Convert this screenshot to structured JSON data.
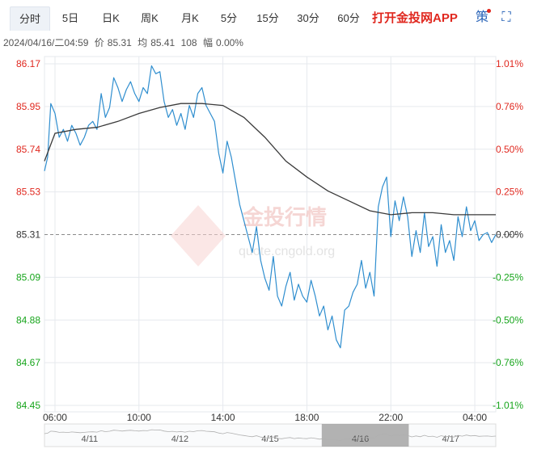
{
  "tabs": [
    {
      "label": "分时",
      "active": true
    },
    {
      "label": "5日"
    },
    {
      "label": "日K"
    },
    {
      "label": "周K"
    },
    {
      "label": "月K"
    },
    {
      "label": "5分"
    },
    {
      "label": "15分"
    },
    {
      "label": "30分"
    },
    {
      "label": "60分"
    }
  ],
  "promo": "打开金投网APP",
  "tool_icons": [
    "strategy-icon",
    "fullscreen-icon"
  ],
  "strategy_glyph": "策",
  "fullscreen_glyph": "⛶",
  "info": {
    "datetime": "2024/04/16/二04:59",
    "price_label": "价",
    "price": "85.31",
    "avg_label": "均",
    "avg": "85.41",
    "volume": "108",
    "change_label": "幅",
    "change": "0.00%"
  },
  "watermark": {
    "brand": "金投行情",
    "url": "quote.cngold.org"
  },
  "colors": {
    "price_line": "#2f8ecf",
    "avg_line": "#3a3a3a",
    "up": "#e0281f",
    "down": "#17a51c",
    "neutral": "#333333",
    "grid": "#e6e9ee",
    "ref_line": "#8a8a8a"
  },
  "chart_data": {
    "type": "line",
    "title": "",
    "xlabel": "",
    "ylabel": "",
    "reference_price": 85.31,
    "ylim": [
      84.45,
      86.17
    ],
    "y_ticks": [
      "86.17",
      "85.95",
      "85.74",
      "85.53",
      "85.31",
      "85.09",
      "84.88",
      "84.67",
      "84.45"
    ],
    "pct_ticks": [
      "1.01%",
      "0.76%",
      "0.50%",
      "0.25%",
      "0.00%",
      "-0.25%",
      "-0.50%",
      "-0.76%",
      "-1.01%"
    ],
    "x_ticks": [
      "06:00",
      "10:00",
      "14:00",
      "18:00",
      "22:00",
      "04:00"
    ],
    "x_range_hours": [
      5.5,
      27.0
    ],
    "grid": true,
    "series": [
      {
        "key": "price",
        "x": [
          5.5,
          5.65,
          5.8,
          6.0,
          6.2,
          6.4,
          6.6,
          6.8,
          7.0,
          7.2,
          7.4,
          7.6,
          7.8,
          8.0,
          8.2,
          8.4,
          8.6,
          8.8,
          9.0,
          9.2,
          9.4,
          9.6,
          9.8,
          10.0,
          10.2,
          10.4,
          10.6,
          10.8,
          11.0,
          11.2,
          11.4,
          11.6,
          11.8,
          12.0,
          12.2,
          12.4,
          12.6,
          12.8,
          13.0,
          13.2,
          13.4,
          13.6,
          13.8,
          14.0,
          14.2,
          14.4,
          14.6,
          14.8,
          15.0,
          15.2,
          15.4,
          15.6,
          15.8,
          16.0,
          16.2,
          16.4,
          16.6,
          16.8,
          17.0,
          17.2,
          17.4,
          17.6,
          17.8,
          18.0,
          18.2,
          18.4,
          18.6,
          18.8,
          19.0,
          19.2,
          19.4,
          19.6,
          19.8,
          20.0,
          20.2,
          20.4,
          20.6,
          20.8,
          21.0,
          21.2,
          21.4,
          21.6,
          21.8,
          22.0,
          22.2,
          22.4,
          22.6,
          22.8,
          23.0,
          23.2,
          23.4,
          23.6,
          23.8,
          24.0,
          24.2,
          24.4,
          24.6,
          24.8,
          25.0,
          25.2,
          25.4,
          25.6,
          25.8,
          26.0,
          26.2,
          26.4,
          26.6,
          26.8,
          27.0
        ],
        "values": [
          85.63,
          85.7,
          85.97,
          85.92,
          85.8,
          85.84,
          85.78,
          85.86,
          85.82,
          85.76,
          85.8,
          85.86,
          85.88,
          85.84,
          86.02,
          85.9,
          85.95,
          86.1,
          86.05,
          85.98,
          86.04,
          86.08,
          86.02,
          85.98,
          86.05,
          86.02,
          86.16,
          86.12,
          86.13,
          85.98,
          85.9,
          85.94,
          85.86,
          85.92,
          85.84,
          85.96,
          85.9,
          86.02,
          86.05,
          85.96,
          85.92,
          85.88,
          85.72,
          85.62,
          85.78,
          85.7,
          85.58,
          85.46,
          85.38,
          85.3,
          85.22,
          85.35,
          85.18,
          85.09,
          85.03,
          85.2,
          85.0,
          84.95,
          85.05,
          85.12,
          84.98,
          85.06,
          85.0,
          84.97,
          85.08,
          85.0,
          84.9,
          84.95,
          84.83,
          84.9,
          84.78,
          84.74,
          84.93,
          84.95,
          85.02,
          85.06,
          85.18,
          85.04,
          85.12,
          85.0,
          85.45,
          85.55,
          85.6,
          85.3,
          85.48,
          85.38,
          85.5,
          85.4,
          85.2,
          85.33,
          85.22,
          85.42,
          85.25,
          85.3,
          85.15,
          85.36,
          85.22,
          85.28,
          85.18,
          85.4,
          85.3,
          85.45,
          85.33,
          85.38,
          85.28,
          85.31,
          85.32,
          85.27,
          85.31
        ]
      },
      {
        "key": "average",
        "x": [
          5.5,
          6.0,
          7.0,
          8.0,
          9.0,
          10.0,
          11.0,
          12.0,
          13.0,
          14.0,
          15.0,
          16.0,
          17.0,
          18.0,
          19.0,
          20.0,
          21.0,
          22.0,
          23.0,
          24.0,
          25.0,
          26.0,
          27.0
        ],
        "values": [
          85.68,
          85.82,
          85.84,
          85.85,
          85.88,
          85.92,
          85.95,
          85.97,
          85.97,
          85.96,
          85.9,
          85.8,
          85.68,
          85.6,
          85.53,
          85.48,
          85.43,
          85.41,
          85.42,
          85.42,
          85.41,
          85.41,
          85.41
        ]
      }
    ]
  },
  "mini_nav": {
    "dates": [
      "4/11",
      "4/12",
      "4/15",
      "4/16",
      "4/17"
    ],
    "selected": "4/16"
  }
}
